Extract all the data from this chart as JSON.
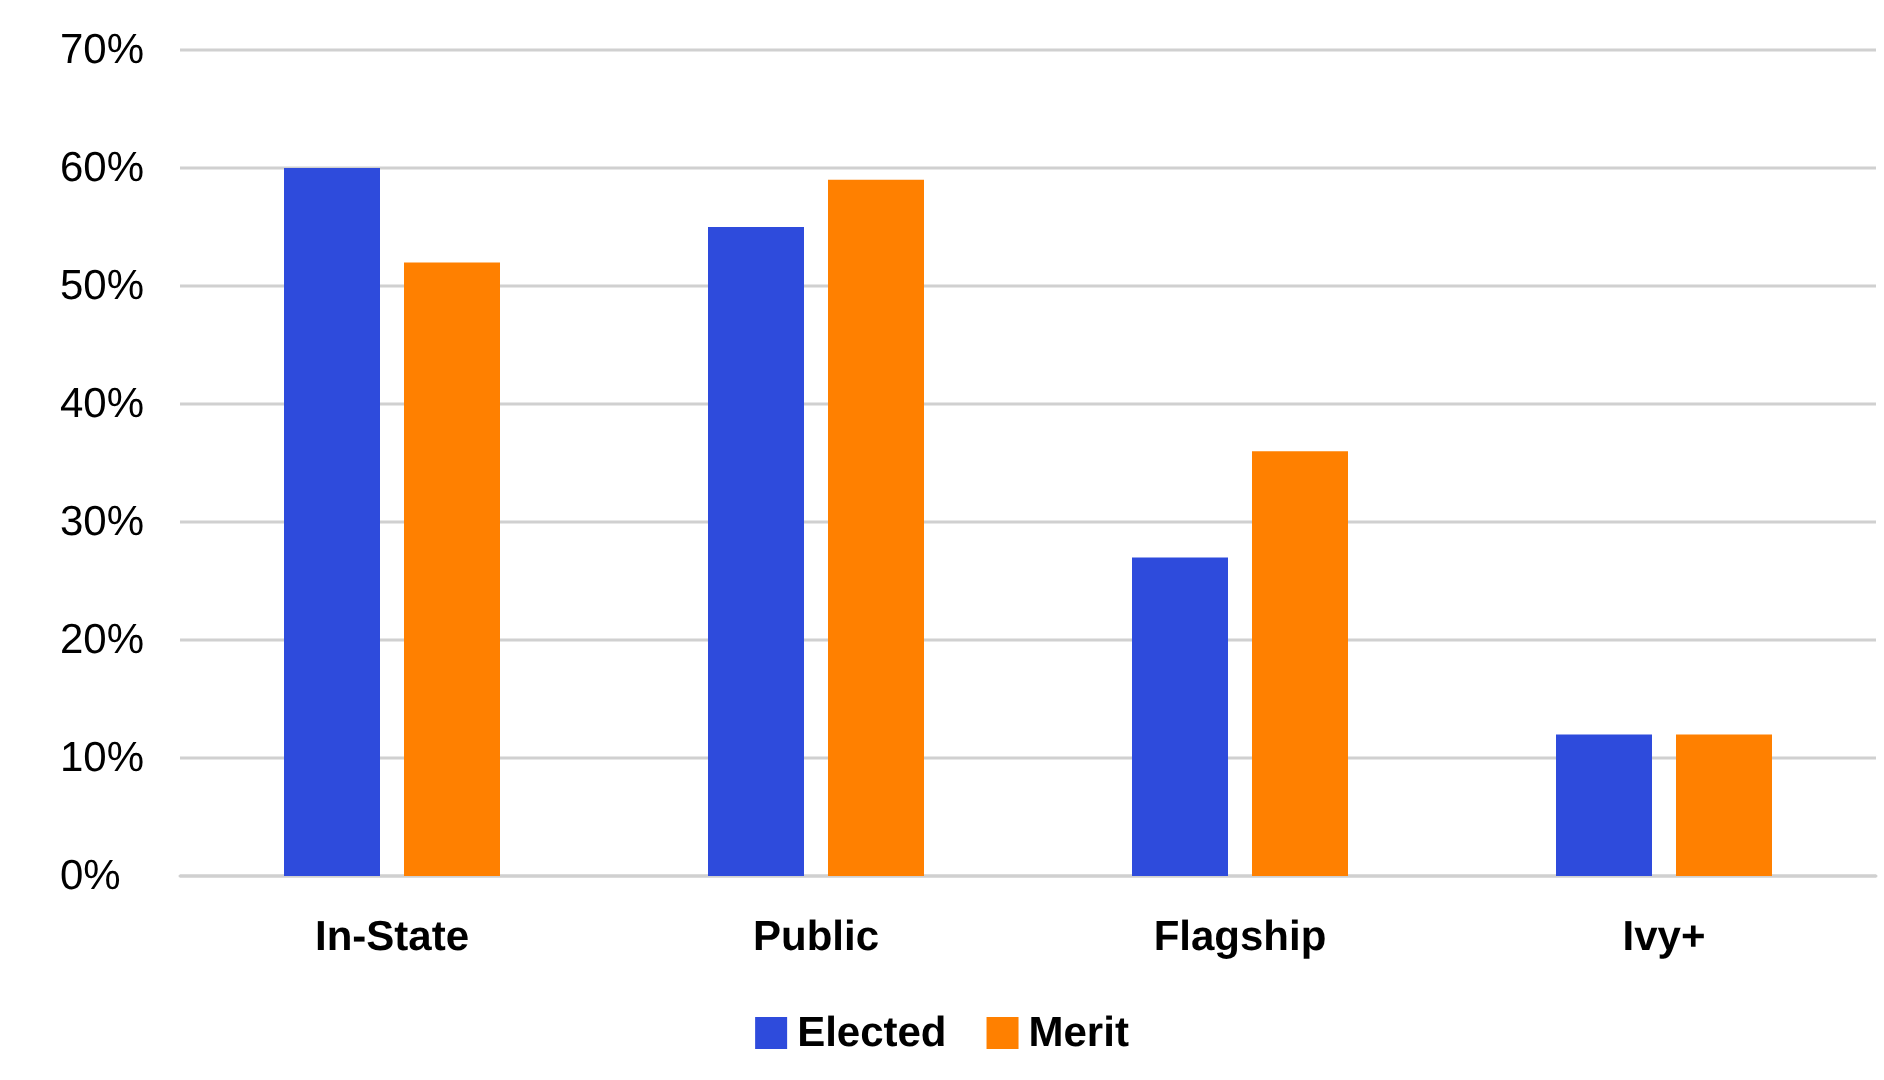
{
  "chart_data": {
    "type": "bar",
    "categories": [
      "In-State",
      "Public",
      "Flagship",
      "Ivy+"
    ],
    "series": [
      {
        "name": "Elected",
        "color": "#2e4bdc",
        "values": [
          60,
          55,
          27,
          12
        ]
      },
      {
        "name": "Merit",
        "color": "#ff8000",
        "values": [
          52,
          59,
          36,
          12
        ]
      }
    ],
    "ylim": [
      0,
      70
    ],
    "yticks": [
      {
        "value": 0,
        "label": "0%"
      },
      {
        "value": 10,
        "label": "10%"
      },
      {
        "value": 20,
        "label": "20%"
      },
      {
        "value": 30,
        "label": "30%"
      },
      {
        "value": 40,
        "label": "40%"
      },
      {
        "value": 50,
        "label": "50%"
      },
      {
        "value": 60,
        "label": "60%"
      },
      {
        "value": 70,
        "label": "70%"
      }
    ],
    "grid": "y",
    "legend": "bottom"
  }
}
